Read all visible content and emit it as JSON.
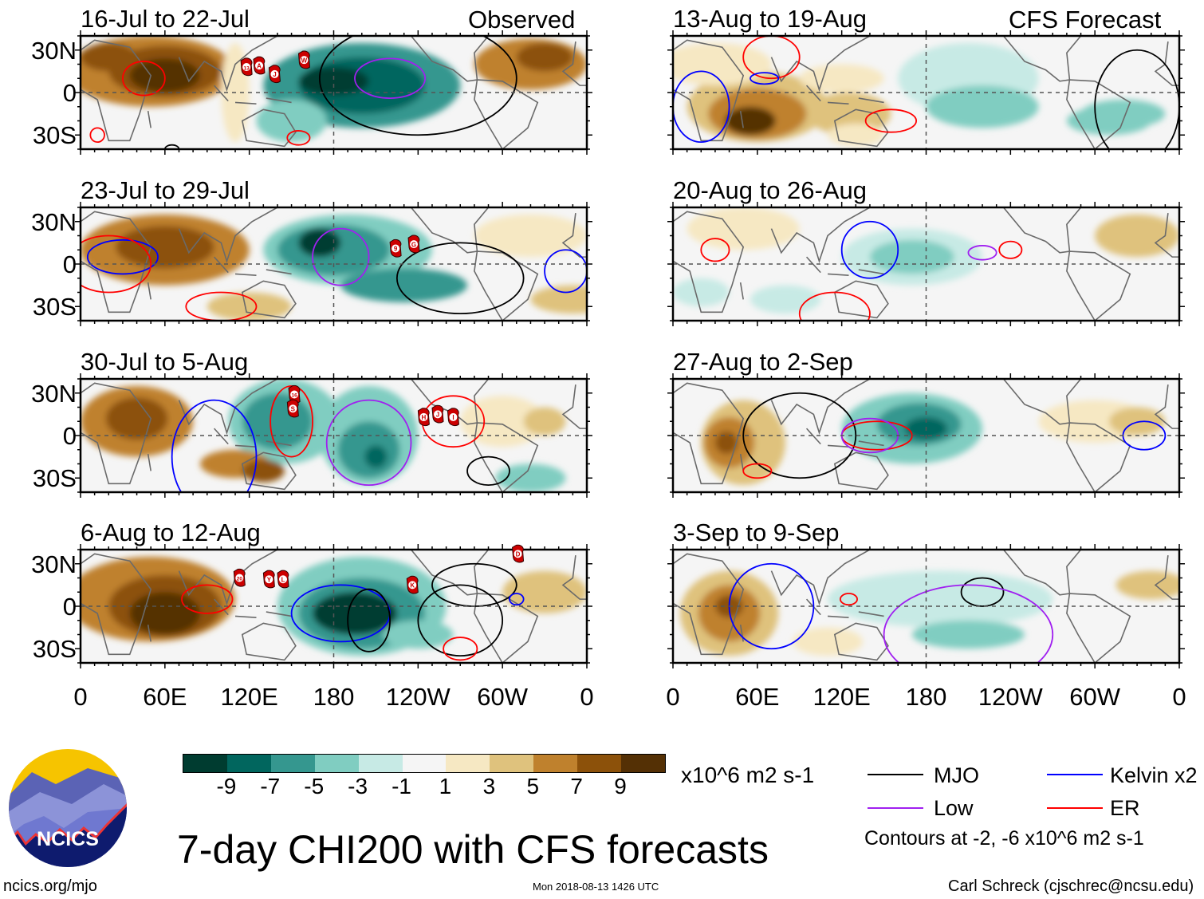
{
  "header": {
    "observed_label": "Observed",
    "forecast_label": "CFS Forecast"
  },
  "lat_ticks": [
    "30N",
    "0",
    "30S"
  ],
  "lon_ticks": [
    "0",
    "60E",
    "120E",
    "180",
    "120W",
    "60W",
    "0"
  ],
  "panels": [
    {
      "title": "16-Jul to 22-Jul",
      "storms": [
        {
          "label": "13",
          "lon": 118,
          "lat": 18
        },
        {
          "label": "A",
          "lon": 127,
          "lat": 19
        },
        {
          "label": "J",
          "lon": 138,
          "lat": 13
        },
        {
          "label": "W",
          "lon": 159,
          "lat": 23
        }
      ]
    },
    {
      "title": "23-Jul to 29-Jul",
      "storms": [
        {
          "label": "9",
          "lon": 224,
          "lat": 11
        },
        {
          "label": "G",
          "lon": 237,
          "lat": 14
        }
      ]
    },
    {
      "title": "30-Jul to 5-Aug",
      "storms": [
        {
          "label": "16",
          "lon": 152,
          "lat": 29
        },
        {
          "label": "S",
          "lon": 151,
          "lat": 19
        },
        {
          "label": "H",
          "lon": 244,
          "lat": 13
        },
        {
          "label": "J",
          "lon": 254,
          "lat": 15
        },
        {
          "label": "I",
          "lon": 265,
          "lat": 13
        }
      ]
    },
    {
      "title": "6-Aug to 12-Aug",
      "storms": [
        {
          "label": "20",
          "lon": 113,
          "lat": 20
        },
        {
          "label": "Y",
          "lon": 134,
          "lat": 19
        },
        {
          "label": "L",
          "lon": 144,
          "lat": 19
        },
        {
          "label": "K",
          "lon": 236,
          "lat": 15
        },
        {
          "label": "D",
          "lon": 311,
          "lat": 37
        }
      ]
    },
    {
      "title": "13-Aug to 19-Aug",
      "storms": []
    },
    {
      "title": "20-Aug to 26-Aug",
      "storms": []
    },
    {
      "title": "27-Aug to 2-Sep",
      "storms": []
    },
    {
      "title": "3-Sep to 9-Sep",
      "storms": []
    }
  ],
  "colorbar": {
    "colors": [
      "#003c30",
      "#01665e",
      "#35978f",
      "#80cdc1",
      "#c7eae5",
      "#f5f5f5",
      "#f6e8c3",
      "#dfc27d",
      "#bf812d",
      "#8c510a",
      "#543005"
    ],
    "ticks": [
      "-9",
      "-7",
      "-5",
      "-3",
      "-1",
      "1",
      "3",
      "5",
      "7",
      "9"
    ],
    "units": "x10^6 m2 s-1"
  },
  "legend": {
    "items": [
      {
        "label": "MJO",
        "color": "#000000"
      },
      {
        "label": "Kelvin x2",
        "color": "#0000ff"
      },
      {
        "label": "Low",
        "color": "#a020f0"
      },
      {
        "label": "ER",
        "color": "#ff0000"
      }
    ],
    "contours_note": "Contours at -2, -6 x10^6 m2 s-1"
  },
  "logo": {
    "text": "NCICS"
  },
  "footer": {
    "title": "7-day CHI200 with CFS forecasts",
    "url": "ncics.org/mjo",
    "timestamp": "Mon 2018-08-13 1426 UTC",
    "author": "Carl Schreck (cjschrec@ncsu.edu)"
  }
}
